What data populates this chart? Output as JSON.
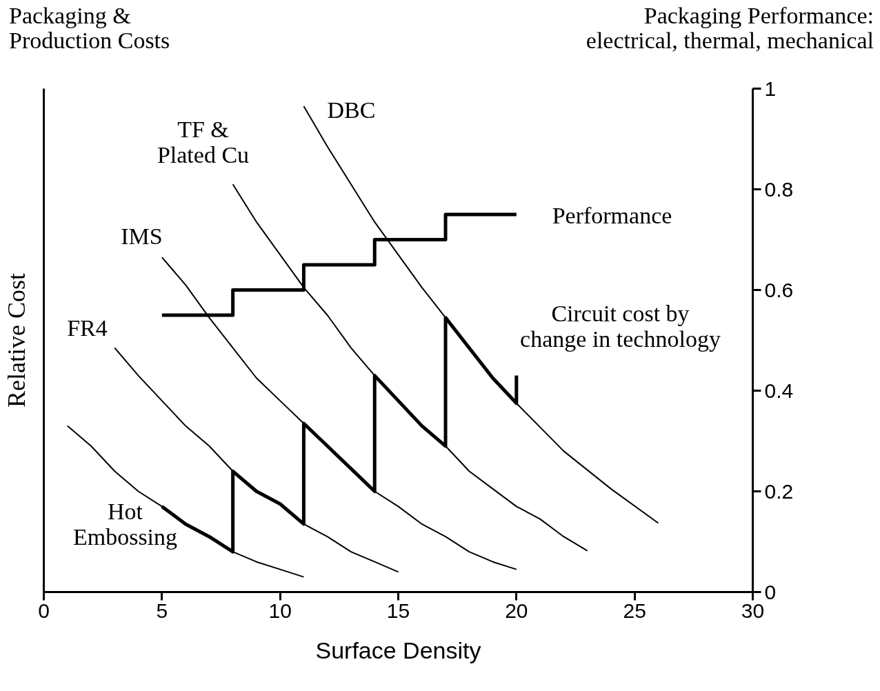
{
  "chart_data": {
    "type": "line",
    "xlabel": "Surface Density",
    "ylabel": "Relative Cost",
    "xlim": [
      0,
      30
    ],
    "xticks": [
      0,
      5,
      10,
      15,
      20,
      25,
      30
    ],
    "y2lim": [
      0,
      1
    ],
    "y2ticks": [
      0,
      0.2,
      0.4,
      0.6,
      0.8,
      1
    ],
    "grid": false,
    "marker": "none",
    "line_style": "solid",
    "series": [
      {
        "axis": "y2",
        "color": "#000000",
        "x": [
          1,
          2,
          3,
          4,
          5,
          6,
          7,
          8,
          9,
          10,
          11
        ],
        "values": [
          0.33,
          0.29,
          0.24,
          0.2,
          0.17,
          0.135,
          0.11,
          0.08,
          0.06,
          0.045,
          0.03
        ]
      },
      {
        "axis": "y2",
        "color": "#000000",
        "x": [
          3,
          4,
          5,
          6,
          7,
          8,
          9,
          10,
          11,
          12,
          13,
          14,
          15
        ],
        "values": [
          0.485,
          0.43,
          0.38,
          0.33,
          0.29,
          0.24,
          0.2,
          0.175,
          0.135,
          0.11,
          0.08,
          0.06,
          0.04
        ]
      },
      {
        "axis": "y2",
        "color": "#000000",
        "x": [
          5,
          6,
          7,
          8,
          9,
          10,
          11,
          12,
          13,
          14,
          15,
          16,
          17,
          18,
          19,
          20
        ],
        "values": [
          0.665,
          0.61,
          0.545,
          0.485,
          0.425,
          0.38,
          0.335,
          0.29,
          0.245,
          0.2,
          0.17,
          0.135,
          0.11,
          0.08,
          0.06,
          0.045
        ]
      },
      {
        "axis": "y2",
        "color": "#000000",
        "x": [
          8,
          9,
          10,
          11,
          12,
          13,
          14,
          15,
          16,
          17,
          18,
          19,
          20,
          21,
          22,
          23
        ],
        "values": [
          0.81,
          0.735,
          0.67,
          0.605,
          0.55,
          0.485,
          0.43,
          0.38,
          0.33,
          0.29,
          0.24,
          0.205,
          0.17,
          0.145,
          0.11,
          0.082
        ]
      },
      {
        "axis": "y2",
        "color": "#000000",
        "x": [
          11,
          12,
          13,
          14,
          15,
          16,
          17,
          18,
          19,
          20,
          22,
          24,
          26
        ],
        "values": [
          0.965,
          0.885,
          0.81,
          0.735,
          0.67,
          0.605,
          0.545,
          0.485,
          0.425,
          0.375,
          0.28,
          0.205,
          0.137
        ]
      },
      {
        "axis": "y2",
        "color": "#000000",
        "x": [
          5,
          6,
          7,
          8,
          8,
          9,
          10,
          11,
          11,
          12,
          13,
          14,
          14,
          15,
          16,
          17,
          17,
          18,
          19,
          20,
          20
        ],
        "values": [
          0.17,
          0.135,
          0.11,
          0.08,
          0.24,
          0.2,
          0.175,
          0.135,
          0.335,
          0.29,
          0.245,
          0.2,
          0.43,
          0.38,
          0.33,
          0.29,
          0.545,
          0.485,
          0.425,
          0.375,
          0.43
        ]
      },
      {
        "type": "step",
        "axis": "y2",
        "color": "#000000",
        "x": [
          5,
          8,
          11,
          14,
          17,
          20
        ],
        "values": [
          0.55,
          0.6,
          0.65,
          0.7,
          0.75,
          0.75
        ]
      }
    ],
    "annotations": [
      "Packaging &\nProduction Costs",
      "Packaging Performance:\nelectrical, thermal, mechanical",
      "DBC",
      "TF &\nPlated Cu",
      "IMS",
      "FR4",
      "Hot\nEmbossing",
      "Performance",
      "Circuit cost by\nchange in technology"
    ]
  }
}
